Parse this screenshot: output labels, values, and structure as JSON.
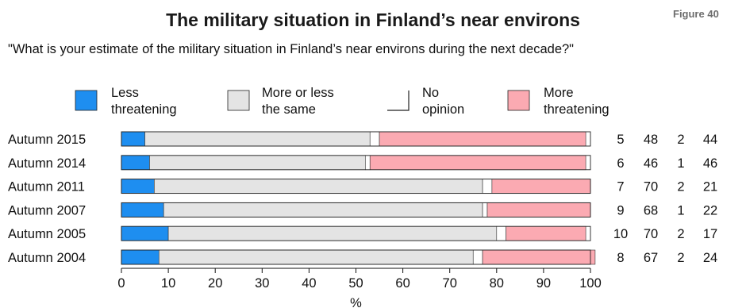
{
  "figure_label": "Figure 40",
  "chart_data": {
    "type": "bar",
    "orientation": "horizontal",
    "stacked": true,
    "title": "The military situation in Finland’s near environs",
    "subtitle": "\"What is your estimate of the military situation in Finland’s near environs during the next decade?\"",
    "xlabel": "%",
    "xlim": [
      0,
      100
    ],
    "x_ticks": [
      "0",
      "10",
      "20",
      "30",
      "40",
      "50",
      "60",
      "70",
      "80",
      "90",
      "100"
    ],
    "legend_position": "top",
    "categories": [
      "Autumn 2015",
      "Autumn 2014",
      "Autumn 2011",
      "Autumn 2007",
      "Autumn 2005",
      "Autumn 2004"
    ],
    "series": [
      {
        "name": "Less threatening",
        "color": "#1e8ef0",
        "values": [
          5,
          6,
          7,
          9,
          10,
          8
        ],
        "labels": [
          "5",
          "6",
          "7",
          "9",
          "10",
          "8"
        ]
      },
      {
        "name": "More or less the same",
        "color": "#e4e4e4",
        "values": [
          48,
          46,
          70,
          68,
          70,
          67
        ],
        "labels": [
          "48",
          "46",
          "70",
          "68",
          "70",
          "67"
        ]
      },
      {
        "name": "No opinion",
        "color": "#ffffff",
        "values": [
          2,
          1,
          2,
          1,
          2,
          2
        ],
        "labels": [
          "2",
          "1",
          "2",
          "1",
          "2",
          "2"
        ]
      },
      {
        "name": "More threatening",
        "color": "#fbaab2",
        "values": [
          44,
          46,
          21,
          22,
          17,
          24
        ],
        "labels": [
          "44",
          "46",
          "21",
          "22",
          "17",
          "24"
        ]
      }
    ],
    "legend_entries": [
      {
        "line1": "Less",
        "line2": "threatening"
      },
      {
        "line1": "More or less",
        "line2": "the same"
      },
      {
        "line1": "No",
        "line2": "opinion"
      },
      {
        "line1": "More",
        "line2": "threatening"
      }
    ]
  }
}
